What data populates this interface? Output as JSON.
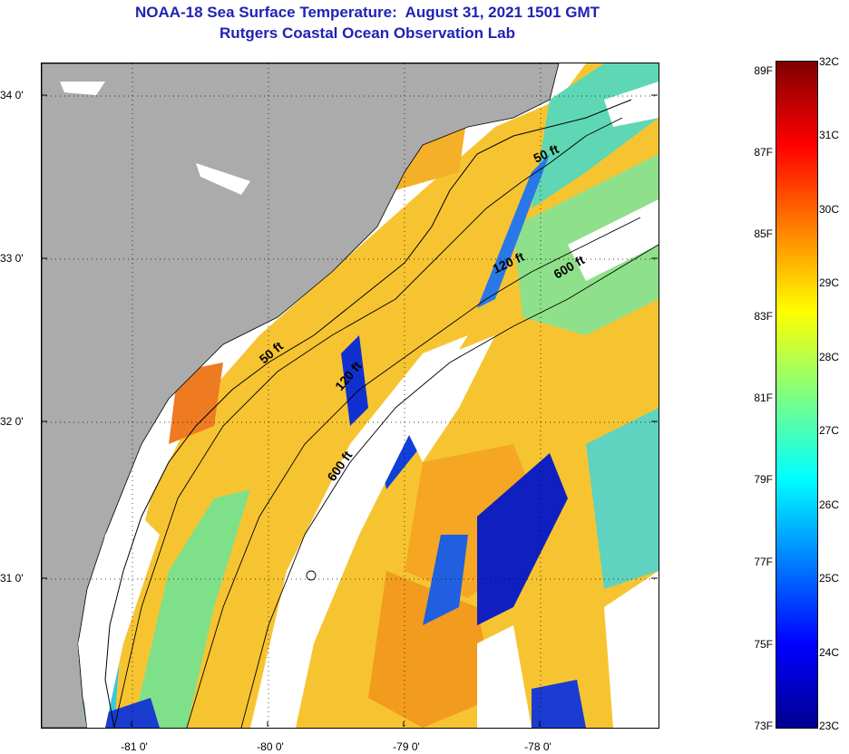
{
  "title": {
    "line1": "NOAA-18 Sea Surface Temperature:  August 31, 2021 1501 GMT",
    "line2": "Rutgers Coastal Ocean Observation Lab"
  },
  "map": {
    "latitude_labels": [
      "34 0'",
      "33 0'",
      "32 0'",
      "31 0'"
    ],
    "longitude_labels": [
      "-81 0'",
      "-80 0'",
      "-79 0'",
      "-78 0'"
    ],
    "isobath_labels": {
      "shelf_50_north": "50 ft",
      "shelf_120_north": "120 ft",
      "shelf_600_north": "600 ft",
      "shelf_50_south": "50 ft",
      "shelf_120_south": "120 ft",
      "shelf_600_south": "600 ft"
    },
    "colors": {
      "land": "#ababab",
      "no_data": "#ffffff",
      "coastline": "#000000"
    }
  },
  "colorbar": {
    "fahrenheit_labels": [
      "89F",
      "87F",
      "85F",
      "83F",
      "81F",
      "79F",
      "77F",
      "75F",
      "73F"
    ],
    "celsius_labels": [
      "32C",
      "31C",
      "30C",
      "29C",
      "28C",
      "27C",
      "26C",
      "25C",
      "24C",
      "23C"
    ],
    "colormap": [
      "#00008f",
      "#0000ff",
      "#007fff",
      "#00ffff",
      "#7fff7f",
      "#ffff00",
      "#ff7f00",
      "#ff0000",
      "#7f0000"
    ]
  }
}
